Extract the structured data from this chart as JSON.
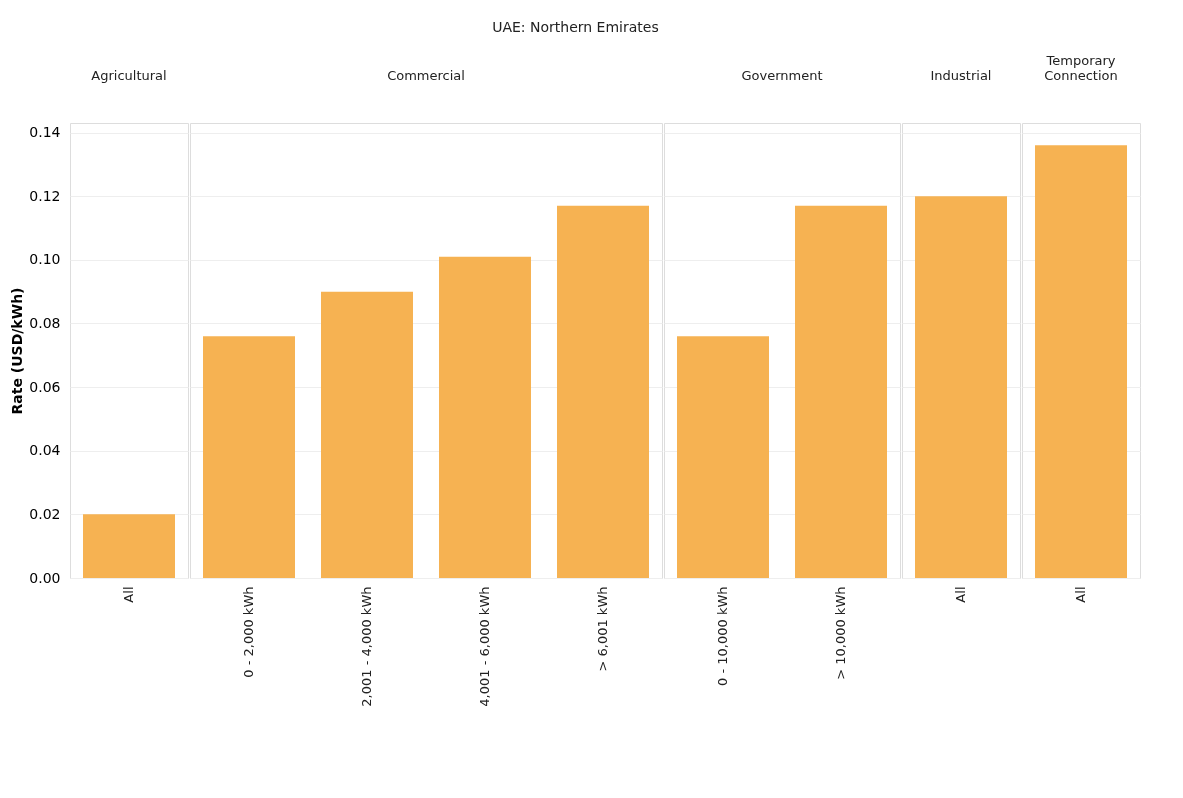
{
  "chart_data": [
    {
      "type": "bar",
      "title": "Agricultural",
      "annotations": [
        "UAE: Northern Emirates"
      ],
      "ylabel": "Rate (USD/kWh)",
      "categories": [
        "All"
      ],
      "values": [
        0.02
      ],
      "color": "#f6b252",
      "ylim": [
        0,
        0.143
      ],
      "yticks": [
        {
          "value": 0,
          "label": "0.00"
        },
        0.02,
        0.04,
        0.06,
        0.08,
        {
          "value": 0.1,
          "label": "0.10"
        },
        0.12,
        0.14
      ],
      "grid": "y"
    },
    {
      "type": "bar",
      "title": "Commercial",
      "categories": [
        "0 - 2,000 kWh",
        "2,001 - 4,000 kWh",
        "4,001 - 6,000 kWh",
        "> 6,001 kWh"
      ],
      "values": [
        0.076,
        0.09,
        0.101,
        0.117
      ],
      "color": "#f6b252",
      "ylim": [
        0,
        0.143
      ],
      "yticks": [
        0,
        0.02,
        0.04,
        0.06,
        0.08,
        0.1,
        0.12,
        0.14
      ],
      "grid": "y",
      "tick_labels": "x"
    },
    {
      "type": "bar",
      "title": "Government",
      "categories": [
        "0 - 10,000 kWh",
        "> 10,000 kWh"
      ],
      "values": [
        0.076,
        0.117
      ],
      "color": "#f6b252",
      "ylim": [
        0,
        0.143
      ],
      "yticks": [
        0,
        0.02,
        0.04,
        0.06,
        0.08,
        0.1,
        0.12,
        0.14
      ],
      "grid": "y",
      "tick_labels": "x"
    },
    {
      "type": "bar",
      "title": "Industrial",
      "categories": [
        "All"
      ],
      "values": [
        0.12
      ],
      "color": "#f6b252",
      "ylim": [
        0,
        0.143
      ],
      "yticks": [
        0,
        0.02,
        0.04,
        0.06,
        0.08,
        0.1,
        0.12,
        0.14
      ],
      "grid": "y",
      "tick_labels": "x"
    },
    {
      "type": "bar",
      "title": "Temporary Connection",
      "categories": [
        "All"
      ],
      "values": [
        0.136
      ],
      "color": "#f6b252",
      "ylim": [
        0,
        0.143
      ],
      "yticks": [
        0,
        0.02,
        0.04,
        0.06,
        0.08,
        0.1,
        0.12,
        0.14
      ],
      "grid": "y",
      "tick_labels": "x"
    }
  ]
}
